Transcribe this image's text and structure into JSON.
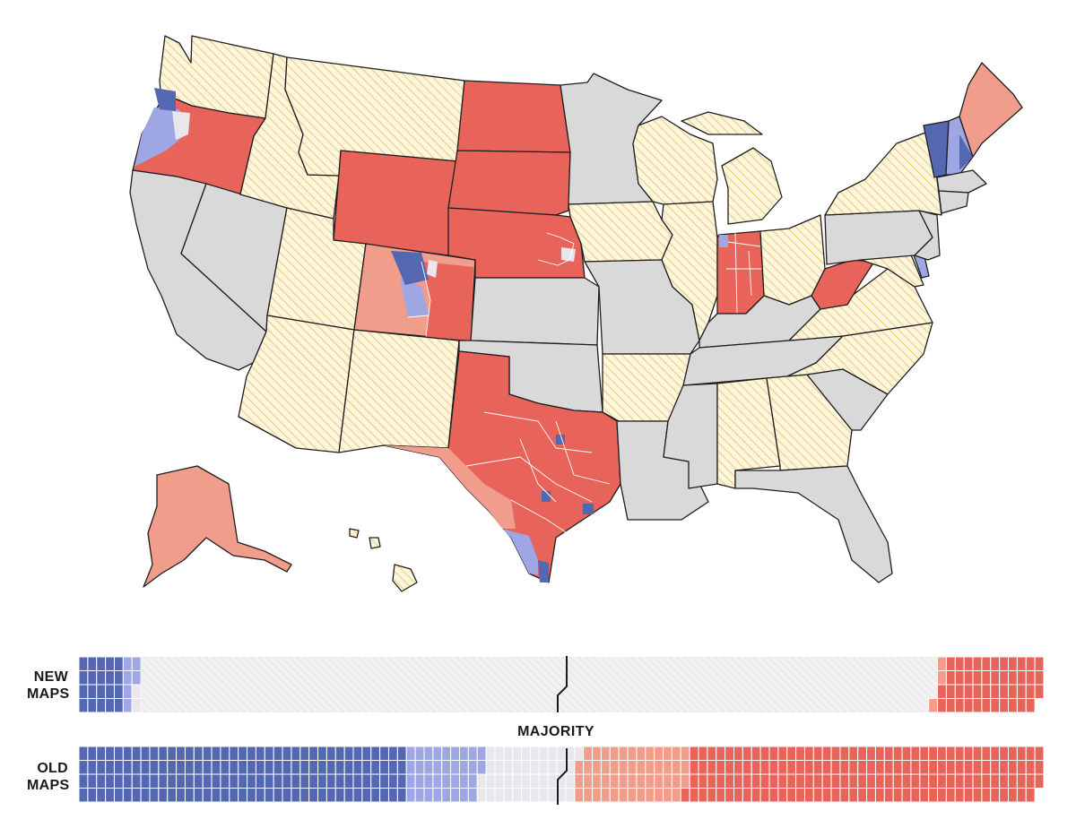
{
  "labels": {
    "new_maps_line1": "NEW",
    "new_maps_line2": "MAPS",
    "old_maps_line1": "OLD",
    "old_maps_line2": "MAPS",
    "majority": "MAJORITY"
  },
  "colors": {
    "dem_safe": "#5468b1",
    "dem_lean": "#9ea6e3",
    "tossup": "#e9e6ec",
    "rep_lean": "#f19d8b",
    "rep_safe": "#e8635a",
    "no_new_map_hatch": "#e0b24d",
    "no_new_map_fill": "#fdf6dc",
    "no_change": "#d9d9d9",
    "pending_hatch": "#dcdcdc"
  },
  "waffle": {
    "rows": 4,
    "new_maps": {
      "dem_safe": 20,
      "dem_lean": 6,
      "tossup": 2,
      "pending": 359,
      "rep_lean": 3,
      "rep_safe": 45
    },
    "old_maps": {
      "dem_safe": 148,
      "dem_lean": 34,
      "tossup": 43,
      "rep_lean": 50,
      "rep_safe": 160
    }
  },
  "states": [
    {
      "name": "washington",
      "category": "no_new_map"
    },
    {
      "name": "oregon",
      "category": "new_map"
    },
    {
      "name": "california",
      "category": "no_change"
    },
    {
      "name": "nevada",
      "category": "no_change"
    },
    {
      "name": "idaho",
      "category": "no_new_map"
    },
    {
      "name": "montana",
      "category": "no_new_map"
    },
    {
      "name": "wyoming",
      "category": "rep_safe"
    },
    {
      "name": "utah",
      "category": "no_new_map"
    },
    {
      "name": "colorado",
      "category": "new_map"
    },
    {
      "name": "arizona",
      "category": "no_new_map"
    },
    {
      "name": "new-mexico",
      "category": "no_new_map"
    },
    {
      "name": "north-dakota",
      "category": "rep_safe"
    },
    {
      "name": "south-dakota",
      "category": "rep_safe"
    },
    {
      "name": "nebraska",
      "category": "new_map"
    },
    {
      "name": "kansas",
      "category": "no_change"
    },
    {
      "name": "oklahoma",
      "category": "no_change"
    },
    {
      "name": "texas",
      "category": "new_map"
    },
    {
      "name": "minnesota",
      "category": "no_change"
    },
    {
      "name": "iowa",
      "category": "no_new_map"
    },
    {
      "name": "missouri",
      "category": "no_change"
    },
    {
      "name": "arkansas",
      "category": "no_new_map"
    },
    {
      "name": "louisiana",
      "category": "no_change"
    },
    {
      "name": "wisconsin",
      "category": "no_new_map"
    },
    {
      "name": "illinois",
      "category": "no_new_map"
    },
    {
      "name": "michigan",
      "category": "no_new_map"
    },
    {
      "name": "indiana",
      "category": "new_map"
    },
    {
      "name": "ohio",
      "category": "no_new_map"
    },
    {
      "name": "kentucky",
      "category": "no_change"
    },
    {
      "name": "tennessee",
      "category": "no_change"
    },
    {
      "name": "mississippi",
      "category": "no_change"
    },
    {
      "name": "alabama",
      "category": "no_new_map"
    },
    {
      "name": "georgia",
      "category": "no_new_map"
    },
    {
      "name": "florida",
      "category": "no_change"
    },
    {
      "name": "south-carolina",
      "category": "no_change"
    },
    {
      "name": "north-carolina",
      "category": "no_new_map"
    },
    {
      "name": "virginia",
      "category": "no_new_map"
    },
    {
      "name": "west-virginia",
      "category": "rep_safe"
    },
    {
      "name": "maryland",
      "category": "no_new_map"
    },
    {
      "name": "delaware",
      "category": "dem_lean"
    },
    {
      "name": "pennsylvania",
      "category": "no_change"
    },
    {
      "name": "new-jersey",
      "category": "no_change"
    },
    {
      "name": "new-york",
      "category": "no_new_map"
    },
    {
      "name": "vermont",
      "category": "dem_safe"
    },
    {
      "name": "new-hampshire",
      "category": "new_map"
    },
    {
      "name": "maine",
      "category": "rep_lean"
    },
    {
      "name": "massachusetts",
      "category": "no_change"
    },
    {
      "name": "connecticut",
      "category": "no_change"
    },
    {
      "name": "alaska",
      "category": "rep_lean"
    },
    {
      "name": "hawaii",
      "category": "no_new_map"
    }
  ]
}
